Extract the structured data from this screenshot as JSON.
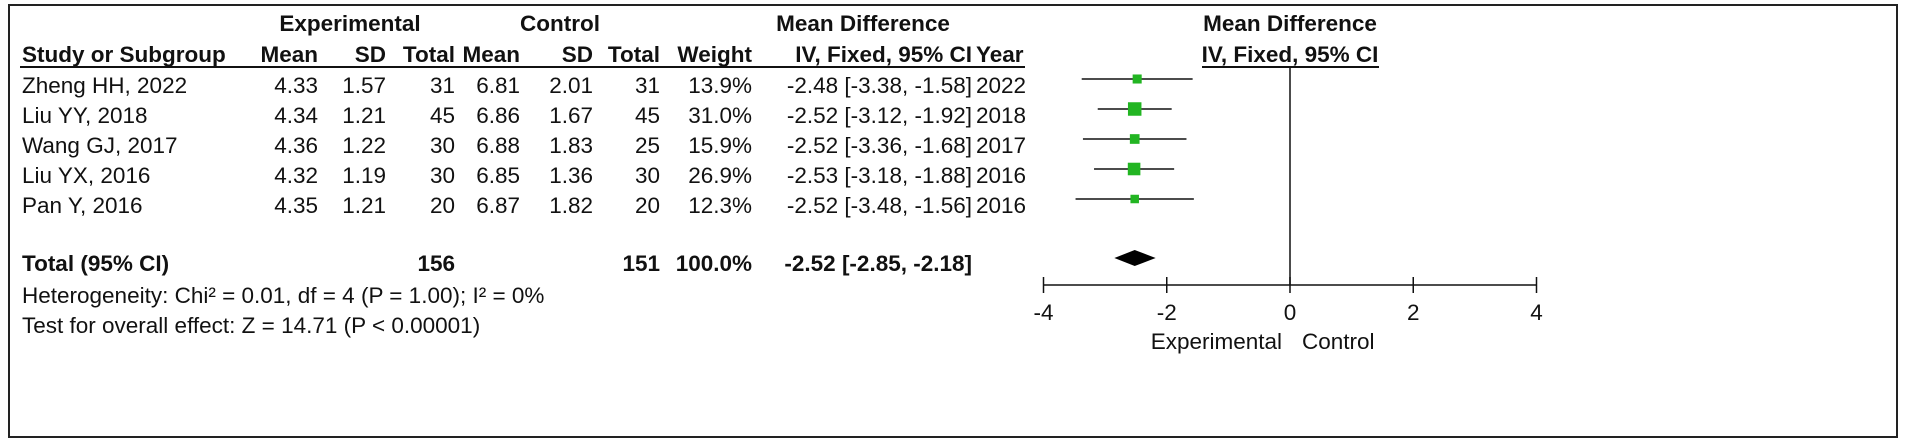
{
  "table": {
    "group_experimental": "Experimental",
    "group_control": "Control",
    "effect_title": "Mean Difference",
    "col_study": "Study or Subgroup",
    "col_exp_mean": "Mean",
    "col_exp_sd": "SD",
    "col_exp_total": "Total",
    "col_ctrl_mean": "Mean",
    "col_ctrl_sd": "SD",
    "col_ctrl_total": "Total",
    "col_weight": "Weight",
    "col_effect": "IV, Fixed, 95% CI",
    "col_year": "Year"
  },
  "studies": [
    {
      "name": "Zheng HH, 2022",
      "exp_mean": "4.33",
      "exp_sd": "1.57",
      "exp_total": "31",
      "ctrl_mean": "6.81",
      "ctrl_sd": "2.01",
      "ctrl_total": "31",
      "weight": "13.9%",
      "ci_text": "-2.48 [-3.38, -1.58]",
      "year": "2022"
    },
    {
      "name": "Liu YY, 2018",
      "exp_mean": "4.34",
      "exp_sd": "1.21",
      "exp_total": "45",
      "ctrl_mean": "6.86",
      "ctrl_sd": "1.67",
      "ctrl_total": "45",
      "weight": "31.0%",
      "ci_text": "-2.52 [-3.12, -1.92]",
      "year": "2018"
    },
    {
      "name": "Wang GJ, 2017",
      "exp_mean": "4.36",
      "exp_sd": "1.22",
      "exp_total": "30",
      "ctrl_mean": "6.88",
      "ctrl_sd": "1.83",
      "ctrl_total": "25",
      "weight": "15.9%",
      "ci_text": "-2.52 [-3.36, -1.68]",
      "year": "2017"
    },
    {
      "name": "Liu YX, 2016",
      "exp_mean": "4.32",
      "exp_sd": "1.19",
      "exp_total": "30",
      "ctrl_mean": "6.85",
      "ctrl_sd": "1.36",
      "ctrl_total": "30",
      "weight": "26.9%",
      "ci_text": "-2.53 [-3.18, -1.88]",
      "year": "2016"
    },
    {
      "name": "Pan Y, 2016",
      "exp_mean": "4.35",
      "exp_sd": "1.21",
      "exp_total": "20",
      "ctrl_mean": "6.87",
      "ctrl_sd": "1.82",
      "ctrl_total": "20",
      "weight": "12.3%",
      "ci_text": "-2.52 [-3.48, -1.56]",
      "year": "2016"
    }
  ],
  "total": {
    "label": "Total (95% CI)",
    "exp_total": "156",
    "ctrl_total": "151",
    "weight": "100.0%",
    "ci_text": "-2.52 [-2.85, -2.18]"
  },
  "heterogeneity": "Heterogeneity: Chi² = 0.01, df = 4 (P = 1.00); I² = 0%",
  "overall_effect": "Test for overall effect: Z = 14.71 (P < 0.00001)",
  "chart_data": {
    "type": "scatter",
    "title": "Mean Difference",
    "subtitle": "IV, Fixed, 95% CI",
    "grid": false,
    "x_axis": {
      "xlim": [
        -4,
        4
      ],
      "ticks": [
        -4,
        -2,
        0,
        2,
        4
      ],
      "tick_labels": [
        "-4",
        "-2",
        "0",
        "2",
        "4"
      ],
      "reference_line": 0
    },
    "favours_left": "Experimental",
    "favours_right": "Control",
    "marker_color": "#22b522",
    "pooled_color": "#000000",
    "points": [
      {
        "md": -2.48,
        "ci": [
          -3.38,
          -1.58
        ],
        "weight": 13.9
      },
      {
        "md": -2.52,
        "ci": [
          -3.12,
          -1.92
        ],
        "weight": 31.0
      },
      {
        "md": -2.52,
        "ci": [
          -3.36,
          -1.68
        ],
        "weight": 15.9
      },
      {
        "md": -2.53,
        "ci": [
          -3.18,
          -1.88
        ],
        "weight": 26.9
      },
      {
        "md": -2.52,
        "ci": [
          -3.48,
          -1.56
        ],
        "weight": 12.3
      }
    ],
    "pooled": {
      "md": -2.52,
      "ci": [
        -2.85,
        -2.18
      ]
    }
  }
}
